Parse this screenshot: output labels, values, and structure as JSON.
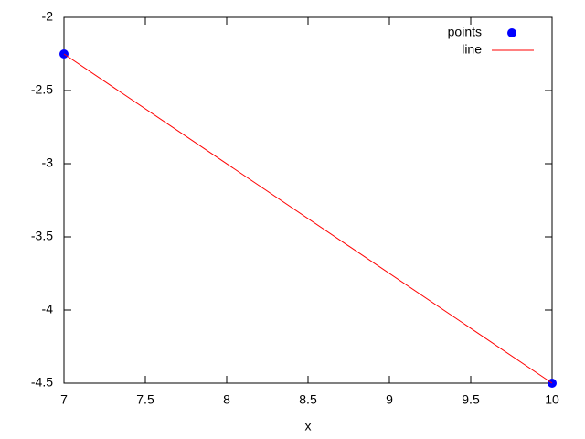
{
  "chart_data": {
    "type": "line",
    "xlabel": "x",
    "series": [
      {
        "name": "points",
        "type": "scatter",
        "color": "#0000ff",
        "x": [
          7,
          10
        ],
        "values": [
          -2.25,
          -4.5
        ]
      },
      {
        "name": "line",
        "type": "line",
        "color": "#ff0000",
        "x": [
          7,
          10
        ],
        "values": [
          -2.25,
          -4.5
        ]
      }
    ],
    "xlim": [
      7,
      10
    ],
    "xticks": [
      7,
      7.5,
      8,
      8.5,
      9,
      9.5,
      10
    ],
    "ylim": [
      -4.5,
      -2
    ],
    "yticks": [
      -2,
      -2.5,
      -3,
      -3.5,
      -4,
      -4.5
    ],
    "legend": "top-right",
    "grid": false
  }
}
